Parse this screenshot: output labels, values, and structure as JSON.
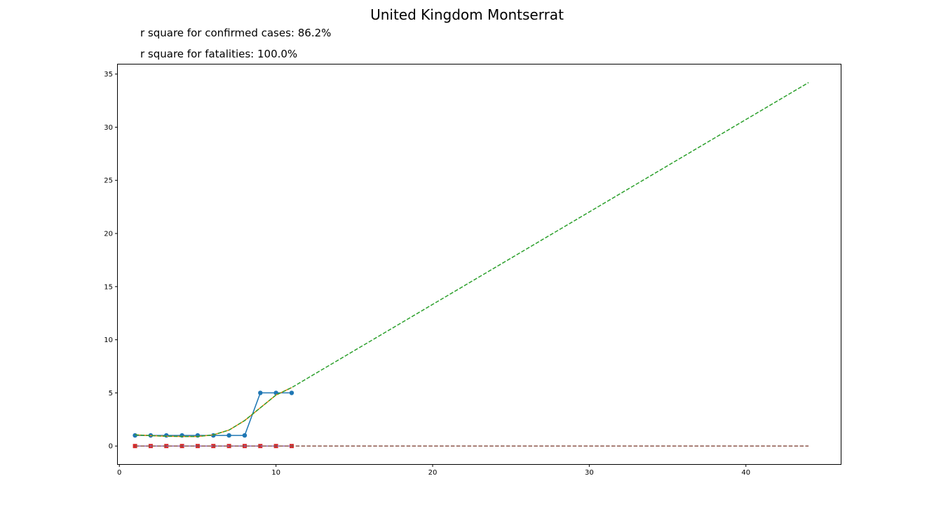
{
  "title": "United Kingdom Montserrat",
  "annotations": [
    "r square for confirmed cases: 86.2%",
    "r square for fatalities: 100.0%"
  ],
  "chart_data": {
    "type": "line",
    "title": "United Kingdom Montserrat",
    "xlabel": "",
    "ylabel": "",
    "xlim": [
      -0.1,
      46.1
    ],
    "ylim": [
      -1.7,
      35.9
    ],
    "xticks": [
      0,
      10,
      20,
      30,
      40
    ],
    "yticks": [
      0,
      5,
      10,
      15,
      20,
      25,
      30,
      35
    ],
    "grid": false,
    "series": [
      {
        "color": "#1f77b4",
        "style": "solid",
        "marker": "circle",
        "x": [
          1,
          2,
          3,
          4,
          5,
          6,
          7,
          8,
          9,
          10,
          11
        ],
        "y": [
          1,
          1,
          1,
          1,
          1,
          1,
          1,
          1,
          5,
          5,
          5
        ]
      },
      {
        "color": "#ff7f0e",
        "style": "solid",
        "marker": "none",
        "x": [
          1,
          2,
          3,
          4,
          5,
          6,
          7,
          8,
          9,
          10,
          11
        ],
        "y": [
          1.05,
          0.98,
          0.92,
          0.9,
          0.9,
          1.05,
          1.5,
          2.4,
          3.6,
          4.8,
          5.5
        ]
      },
      {
        "color": "#2ca02c",
        "style": "dashed",
        "marker": "none",
        "x": [
          1,
          2,
          3,
          4,
          5,
          6,
          7,
          8,
          9,
          10,
          11,
          44
        ],
        "y": [
          1.05,
          0.98,
          0.92,
          0.9,
          0.9,
          1.05,
          1.5,
          2.4,
          3.6,
          4.8,
          5.5,
          34.2
        ]
      },
      {
        "color": "#d62728",
        "style": "solid",
        "marker": "square",
        "x": [
          1,
          2,
          3,
          4,
          5,
          6,
          7,
          8,
          9,
          10,
          11
        ],
        "y": [
          0,
          0,
          0,
          0,
          0,
          0,
          0,
          0,
          0,
          0,
          0
        ]
      },
      {
        "color": "#9467bd",
        "style": "solid",
        "marker": "none",
        "x": [
          1,
          11
        ],
        "y": [
          0,
          0
        ]
      },
      {
        "color": "#8c564b",
        "style": "dashed",
        "marker": "none",
        "x": [
          1,
          44
        ],
        "y": [
          0,
          0
        ]
      }
    ]
  }
}
